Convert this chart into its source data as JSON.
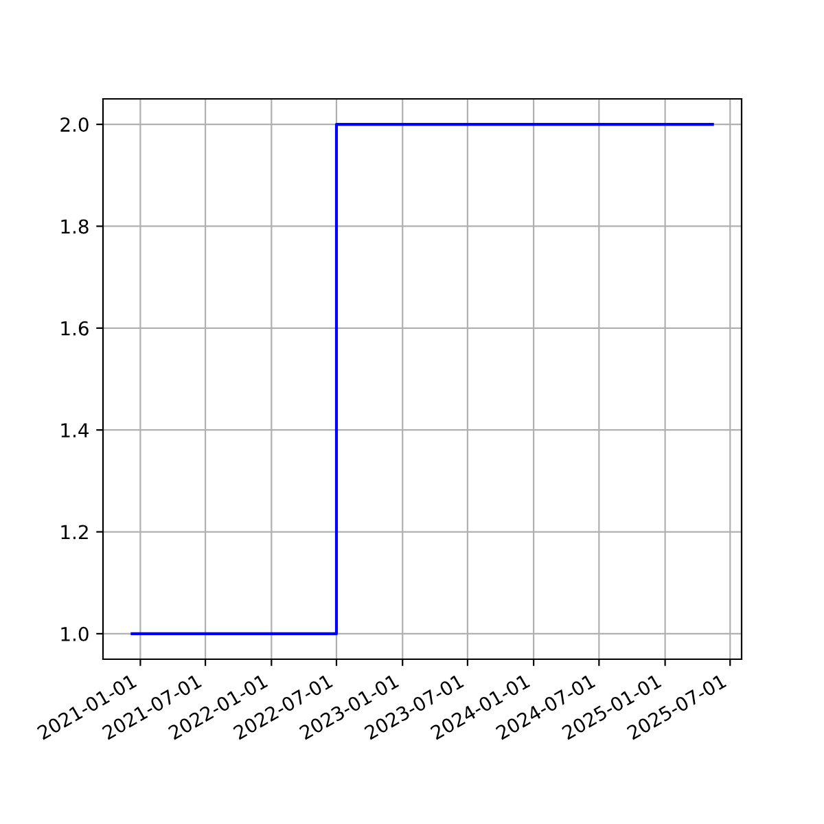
{
  "chart_data": {
    "type": "step",
    "x": [
      "2020-12-09",
      "2022-07-01",
      "2025-05-13"
    ],
    "series": [
      {
        "color": "#0000ff",
        "values": [
          1,
          2,
          2
        ]
      }
    ],
    "xlim": [
      "2020-09-19",
      "2025-08-02"
    ],
    "xticks": [
      "2021-01-01",
      "2021-07-01",
      "2022-01-01",
      "2022-07-01",
      "2023-01-01",
      "2023-07-01",
      "2024-01-01",
      "2024-07-01",
      "2025-01-01",
      "2025-07-01"
    ],
    "ylim": [
      0.95,
      2.05
    ],
    "yticks": [
      {
        "value": 1,
        "label": "1.0"
      },
      {
        "value": 1.2,
        "label": "1.2"
      },
      {
        "value": 1.4,
        "label": "1.4"
      },
      {
        "value": 1.6,
        "label": "1.6"
      },
      {
        "value": 1.8,
        "label": "1.8"
      },
      {
        "value": 2,
        "label": "2.0"
      }
    ],
    "grid": true
  }
}
